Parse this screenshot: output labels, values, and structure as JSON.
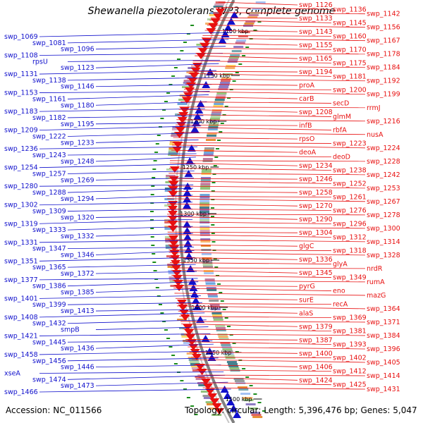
{
  "title": "Shewanella piezotolerans WP3, complete genome",
  "footer": {
    "accession": "Accession: NC_011566",
    "summary": "Topology: circular; Length: 5,396,476 bp; Genes: 5,047"
  },
  "colors": {
    "plus_strand": "#1010cc",
    "minus_strand": "#e81010",
    "backbone": "#808080",
    "tick": "#1a8c1a"
  },
  "kbp_ticks": [
    "1100 kbp",
    "1150 kbp",
    "1200 kbp",
    "1250 kbp",
    "1300 kbp",
    "1350 kbp",
    "1400 kbp",
    "1450 kbp",
    "1500 kbp"
  ],
  "left_labels": [
    "swp_1069",
    "swp_1081",
    "swp_1096",
    "swp_1108",
    "rpsU",
    "swp_1123",
    "swp_1131",
    "swp_1138",
    "swp_1146",
    "swp_1153",
    "swp_1161",
    "swp_1180",
    "swp_1183",
    "swp_1182",
    "swp_1195",
    "swp_1209",
    "swp_1222",
    "swp_1233",
    "swp_1236",
    "swp_1243",
    "swp_1248",
    "swp_1254",
    "swp_1257",
    "swp_1269",
    "swp_1280",
    "swp_1288",
    "swp_1294",
    "swp_1302",
    "swp_1309",
    "swp_1320",
    "swp_1319",
    "swp_1333",
    "swp_1332",
    "swp_1331",
    "swp_1347",
    "swp_1346",
    "swp_1351",
    "swp_1365",
    "swp_1372",
    "swp_1377",
    "swp_1386",
    "swp_1385",
    "swp_1401",
    "swp_1399",
    "swp_1413",
    "swp_1408",
    "swp_1432",
    "smpB",
    "swp_1421",
    "swp_1445",
    "swp_1436",
    "swp_1458",
    "swp_1456",
    "swp_1446",
    "xseA",
    "swp_1474",
    "swp_1473",
    "swp_1466"
  ],
  "right_labels": [
    "swp_1126",
    "swp_1136",
    "swp_1142",
    "swp_1133",
    "swp_1145",
    "swp_1156",
    "swp_1143",
    "swp_1160",
    "swp_1167",
    "swp_1155",
    "swp_1170",
    "swp_1178",
    "swp_1165",
    "swp_1175",
    "swp_1184",
    "swp_1194",
    "swp_1181",
    "swp_1192",
    "proA",
    "swp_1200",
    "swp_1199",
    "carB",
    "secD",
    "rrmJ",
    "swp_1208",
    "glmM",
    "swp_1216",
    "infB",
    "rbfA",
    "nusA",
    "rpsO",
    "swp_1223",
    "swp_1224",
    "deoA",
    "deoD",
    "swp_1228",
    "swp_1234",
    "swp_1238",
    "swp_1242",
    "swp_1246",
    "swp_1252",
    "swp_1253",
    "swp_1258",
    "swp_1261",
    "swp_1267",
    "swp_1270",
    "swp_1276",
    "swp_1278",
    "swp_1290",
    "swp_1296",
    "swp_1300",
    "swp_1304",
    "swp_1312",
    "swp_1314",
    "glgC",
    "swp_1318",
    "swp_1328",
    "swp_1336",
    "glyA",
    "nrdR",
    "swp_1345",
    "swp_1349",
    "rumA",
    "pyrG",
    "eno",
    "mazG",
    "surE",
    "recA",
    "swp_1364",
    "alaS",
    "swp_1369",
    "swp_1371",
    "swp_1379",
    "swp_1381",
    "swp_1384",
    "swp_1387",
    "swp_1393",
    "swp_1396",
    "swp_1400",
    "swp_1402",
    "swp_1405",
    "swp_1406",
    "swp_1412",
    "swp_1414",
    "swp_1424",
    "swp_1425",
    "swp_1431"
  ]
}
